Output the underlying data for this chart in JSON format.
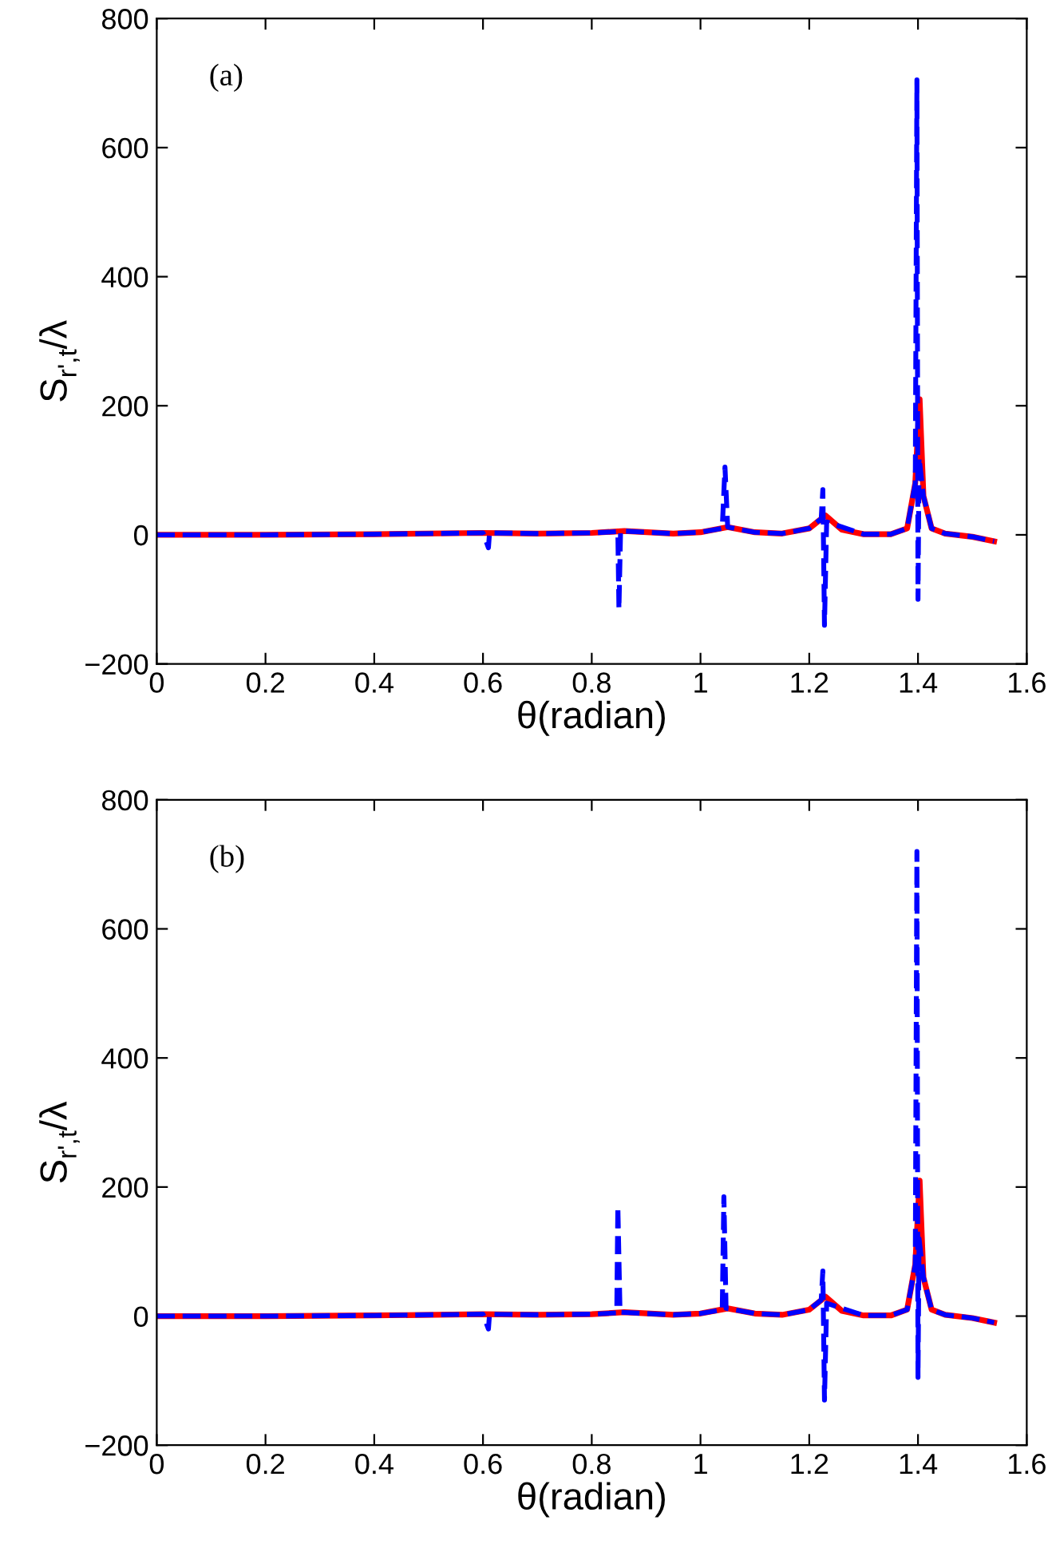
{
  "chart_data": [
    {
      "type": "line",
      "xlabel": "θ(radian)",
      "ylabel": "S$_{r',t}$/λ",
      "annotations": [
        "(a)"
      ],
      "xlim": [
        0,
        1.6
      ],
      "xticks": [
        0,
        0.2,
        0.4,
        0.6,
        0.8,
        1,
        1.2,
        1.4,
        1.6
      ],
      "ylim": [
        -200,
        800
      ],
      "yticks": [
        {
          "value": -200,
          "label": "−200"
        },
        0,
        200,
        400,
        600,
        800
      ],
      "grid": false,
      "legend": false,
      "series": [
        {
          "color": "#ff0000",
          "line_style": "solid",
          "x": [
            0,
            0.2,
            0.4,
            0.6,
            0.7,
            0.8,
            0.86,
            0.95,
            1.0,
            1.05,
            1.1,
            1.15,
            1.2,
            1.23,
            1.26,
            1.3,
            1.35,
            1.38,
            1.395,
            1.403,
            1.41,
            1.425,
            1.45,
            1.5,
            1.54
          ],
          "values": [
            0,
            0,
            1,
            3,
            2,
            3,
            6,
            2,
            4,
            12,
            4,
            2,
            10,
            30,
            8,
            1,
            1,
            10,
            80,
            210,
            60,
            10,
            2,
            -3,
            -10
          ]
        },
        {
          "color": "#0000ff",
          "line_style": "dashed",
          "x": [
            0,
            0.2,
            0.4,
            0.6,
            0.61,
            0.612,
            0.7,
            0.8,
            0.848,
            0.85,
            0.853,
            0.95,
            1.0,
            1.04,
            1.045,
            1.05,
            1.1,
            1.15,
            1.2,
            1.222,
            1.225,
            1.228,
            1.232,
            1.3,
            1.35,
            1.38,
            1.395,
            1.398,
            1.4,
            1.402,
            1.41,
            1.425,
            1.45,
            1.5,
            1.54
          ],
          "values": [
            0,
            0,
            1,
            3,
            -20,
            3,
            2,
            3,
            5,
            -115,
            6,
            2,
            4,
            10,
            105,
            12,
            4,
            2,
            10,
            25,
            70,
            -140,
            20,
            1,
            1,
            10,
            80,
            705,
            -100,
            120,
            60,
            10,
            2,
            -3,
            -10
          ]
        }
      ]
    },
    {
      "type": "line",
      "xlabel": "θ(radian)",
      "ylabel": "S$_{r',t}$/λ",
      "annotations": [
        "(b)"
      ],
      "xlim": [
        0,
        1.6
      ],
      "xticks": [
        0,
        0.2,
        0.4,
        0.6,
        0.8,
        1,
        1.2,
        1.4,
        1.6
      ],
      "ylim": [
        -200,
        800
      ],
      "yticks": [
        {
          "value": -200,
          "label": "−200"
        },
        0,
        200,
        400,
        600,
        800
      ],
      "grid": false,
      "legend": false,
      "series": [
        {
          "color": "#ff0000",
          "line_style": "solid",
          "x": [
            0,
            0.2,
            0.4,
            0.6,
            0.7,
            0.8,
            0.86,
            0.95,
            1.0,
            1.05,
            1.1,
            1.15,
            1.2,
            1.23,
            1.26,
            1.3,
            1.35,
            1.38,
            1.395,
            1.403,
            1.41,
            1.425,
            1.45,
            1.5,
            1.54
          ],
          "values": [
            0,
            0,
            1,
            3,
            2,
            3,
            6,
            2,
            4,
            12,
            4,
            2,
            10,
            30,
            8,
            1,
            1,
            10,
            80,
            210,
            60,
            10,
            2,
            -3,
            -10
          ]
        },
        {
          "color": "#0000ff",
          "line_style": "dashed",
          "x": [
            0,
            0.2,
            0.4,
            0.6,
            0.61,
            0.612,
            0.7,
            0.8,
            0.846,
            0.848,
            0.852,
            0.95,
            1.0,
            1.04,
            1.043,
            1.047,
            1.1,
            1.15,
            1.2,
            1.222,
            1.225,
            1.228,
            1.232,
            1.3,
            1.35,
            1.38,
            1.395,
            1.398,
            1.4,
            1.402,
            1.41,
            1.425,
            1.45,
            1.5,
            1.54
          ],
          "values": [
            0,
            0,
            1,
            3,
            -20,
            3,
            2,
            3,
            5,
            170,
            6,
            2,
            4,
            10,
            185,
            12,
            4,
            2,
            10,
            25,
            70,
            -130,
            20,
            1,
            1,
            10,
            80,
            720,
            -95,
            120,
            60,
            10,
            2,
            -3,
            -10
          ]
        }
      ]
    }
  ]
}
